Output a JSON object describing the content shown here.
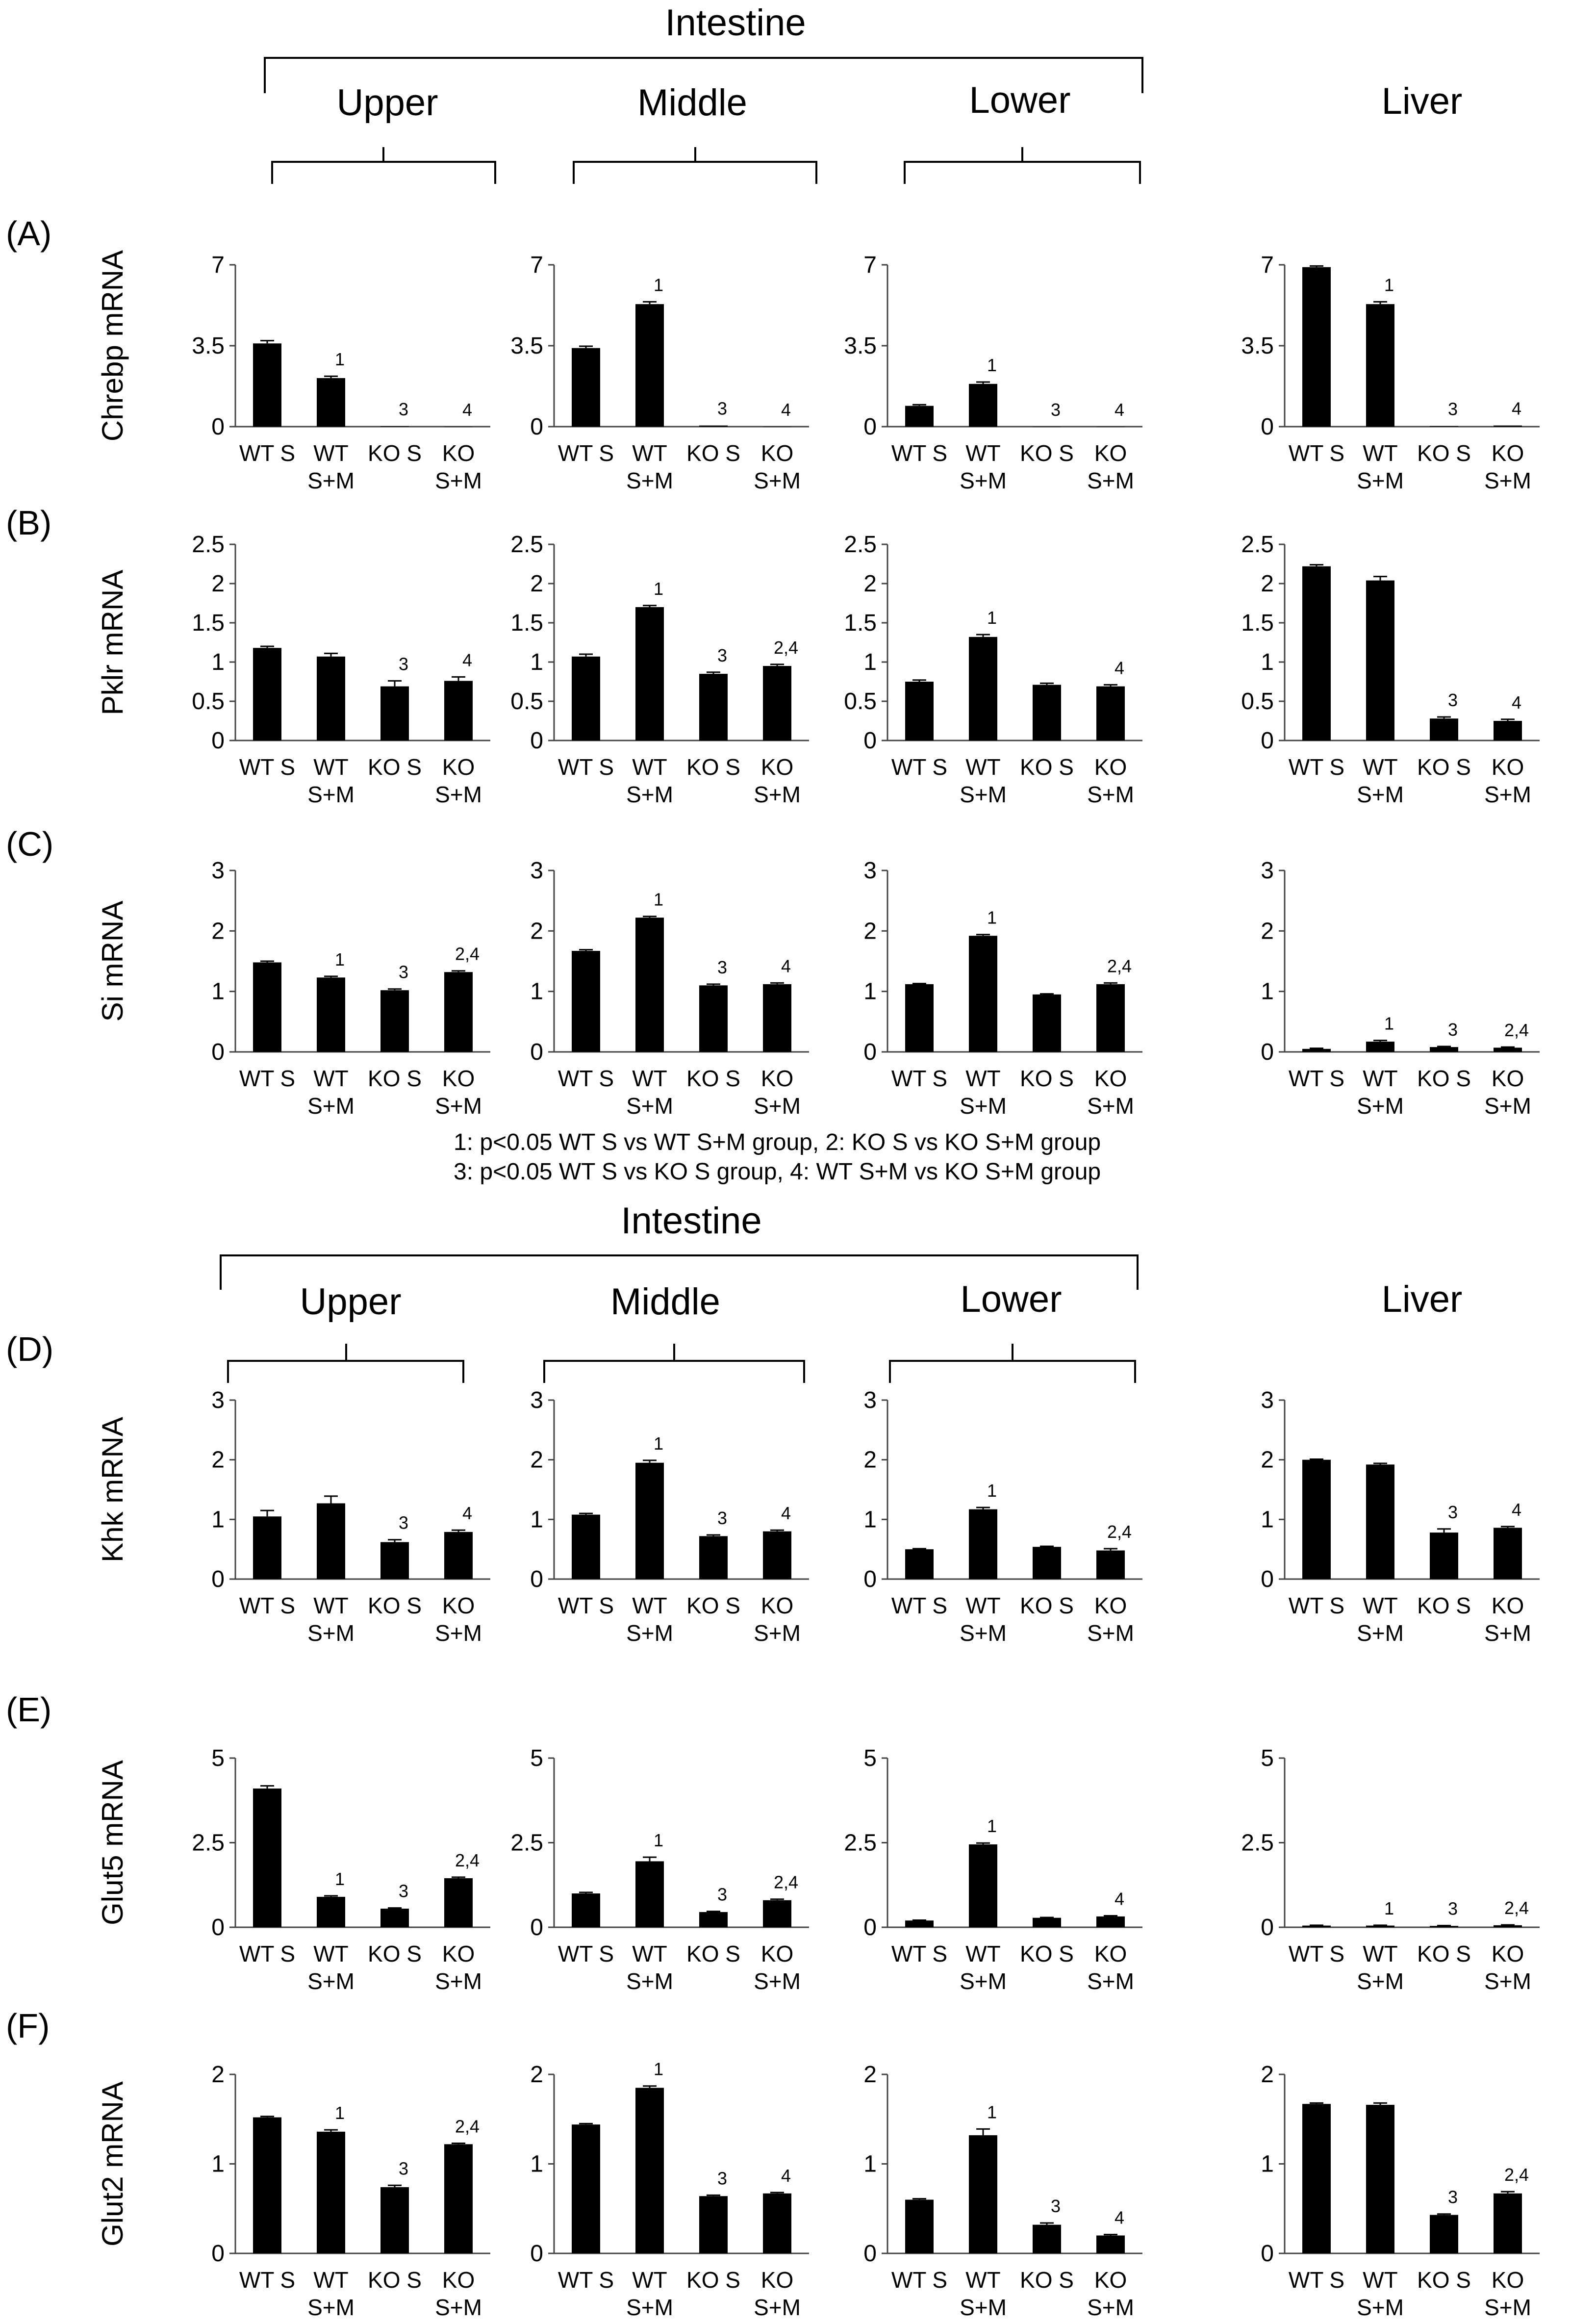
{
  "headers": {
    "intestine": "Intestine",
    "upper": "Upper",
    "middle": "Middle",
    "lower": "Lower",
    "liver": "Liver"
  },
  "footnote": {
    "line1": "1: p<0.05   WT S vs WT S+M  group,  2: KO S vs KO S+M  group",
    "line2": "3: p<0.05   WT S vs KO S   group,  4: WT S+M vs KO S+M  group"
  },
  "chart_data": [
    {
      "type": "bar",
      "panel": "A",
      "row_label": "(A)",
      "ylabel": "Chrebp mRNA",
      "region": "Upper",
      "ylim": [
        0,
        7
      ],
      "yticks": [
        "0",
        "3.5",
        "7"
      ],
      "categories": [
        "WT S",
        "WT S+M",
        "KO S",
        "KO S+M"
      ],
      "values": [
        3.6,
        2.1,
        0.02,
        0.0
      ],
      "errors": [
        0.12,
        0.08,
        0,
        0
      ],
      "sig": [
        "",
        "1",
        "3",
        "4"
      ]
    },
    {
      "type": "bar",
      "panel": "A",
      "row_label": "",
      "ylabel": "",
      "region": "Middle",
      "ylim": [
        0,
        7
      ],
      "yticks": [
        "0",
        "3.5",
        "7"
      ],
      "categories": [
        "WT S",
        "WT S+M",
        "KO S",
        "KO S+M"
      ],
      "values": [
        3.4,
        5.3,
        0.05,
        0.0
      ],
      "errors": [
        0.08,
        0.1,
        0,
        0
      ],
      "sig": [
        "",
        "1",
        "3",
        "4"
      ]
    },
    {
      "type": "bar",
      "panel": "A",
      "row_label": "",
      "ylabel": "",
      "region": "Lower",
      "ylim": [
        0,
        7
      ],
      "yticks": [
        "0",
        "3.5",
        "7"
      ],
      "categories": [
        "WT S",
        "WT S+M",
        "KO S",
        "KO S+M"
      ],
      "values": [
        0.9,
        1.85,
        0.0,
        0.0
      ],
      "errors": [
        0.05,
        0.08,
        0,
        0
      ],
      "sig": [
        "",
        "1",
        "3",
        "4"
      ]
    },
    {
      "type": "bar",
      "panel": "A",
      "row_label": "",
      "ylabel": "",
      "region": "Liver",
      "ylim": [
        0,
        7
      ],
      "yticks": [
        "0",
        "3.5",
        "7"
      ],
      "categories": [
        "WT S",
        "WT S+M",
        "KO S",
        "KO S+M"
      ],
      "values": [
        6.9,
        5.3,
        0.03,
        0.05
      ],
      "errors": [
        0.05,
        0.1,
        0,
        0
      ],
      "sig": [
        "",
        "1",
        "3",
        "4"
      ]
    },
    {
      "type": "bar",
      "panel": "B",
      "row_label": "(B)",
      "ylabel": "Pklr mRNA",
      "region": "Upper",
      "ylim": [
        0,
        2.5
      ],
      "yticks": [
        "0",
        "0.5",
        "1",
        "1.5",
        "2",
        "2.5"
      ],
      "categories": [
        "WT S",
        "WT S+M",
        "KO S",
        "KO S+M"
      ],
      "values": [
        1.18,
        1.07,
        0.69,
        0.76
      ],
      "errors": [
        0.02,
        0.04,
        0.07,
        0.05
      ],
      "sig": [
        "",
        "",
        "3",
        "4"
      ]
    },
    {
      "type": "bar",
      "panel": "B",
      "row_label": "",
      "ylabel": "",
      "region": "Middle",
      "ylim": [
        0,
        2.5
      ],
      "yticks": [
        "0",
        "0.5",
        "1",
        "1.5",
        "2",
        "2.5"
      ],
      "categories": [
        "WT S",
        "WT S+M",
        "KO S",
        "KO S+M"
      ],
      "values": [
        1.07,
        1.7,
        0.85,
        0.95
      ],
      "errors": [
        0.03,
        0.02,
        0.02,
        0.02
      ],
      "sig": [
        "",
        "1",
        "3",
        "2,4"
      ]
    },
    {
      "type": "bar",
      "panel": "B",
      "row_label": "",
      "ylabel": "",
      "region": "Lower",
      "ylim": [
        0,
        2.5
      ],
      "yticks": [
        "0",
        "0.5",
        "1",
        "1.5",
        "2",
        "2.5"
      ],
      "categories": [
        "WT S",
        "WT S+M",
        "KO S",
        "KO S+M"
      ],
      "values": [
        0.75,
        1.32,
        0.71,
        0.69
      ],
      "errors": [
        0.02,
        0.03,
        0.02,
        0.02
      ],
      "sig": [
        "",
        "1",
        "",
        "4"
      ]
    },
    {
      "type": "bar",
      "panel": "B",
      "row_label": "",
      "ylabel": "",
      "region": "Liver",
      "ylim": [
        0,
        2.5
      ],
      "yticks": [
        "0",
        "0.5",
        "1",
        "1.5",
        "2",
        "2.5"
      ],
      "categories": [
        "WT S",
        "WT S+M",
        "KO S",
        "KO S+M"
      ],
      "values": [
        2.22,
        2.04,
        0.28,
        0.25
      ],
      "errors": [
        0.02,
        0.05,
        0.02,
        0.02
      ],
      "sig": [
        "",
        "",
        "3",
        "4"
      ]
    },
    {
      "type": "bar",
      "panel": "C",
      "row_label": "(C)",
      "ylabel": "Si mRNA",
      "region": "Upper",
      "ylim": [
        0,
        3
      ],
      "yticks": [
        "0",
        "1",
        "2",
        "3"
      ],
      "categories": [
        "WT S",
        "WT S+M",
        "KO S",
        "KO S+M"
      ],
      "values": [
        1.48,
        1.23,
        1.02,
        1.32
      ],
      "errors": [
        0.02,
        0.02,
        0.02,
        0.02
      ],
      "sig": [
        "",
        "1",
        "3",
        "2,4"
      ]
    },
    {
      "type": "bar",
      "panel": "C",
      "row_label": "",
      "ylabel": "",
      "region": "Middle",
      "ylim": [
        0,
        3
      ],
      "yticks": [
        "0",
        "1",
        "2",
        "3"
      ],
      "categories": [
        "WT S",
        "WT S+M",
        "KO S",
        "KO S+M"
      ],
      "values": [
        1.67,
        2.22,
        1.1,
        1.12
      ],
      "errors": [
        0.02,
        0.02,
        0.02,
        0.02
      ],
      "sig": [
        "",
        "1",
        "3",
        "4"
      ]
    },
    {
      "type": "bar",
      "panel": "C",
      "row_label": "",
      "ylabel": "",
      "region": "Lower",
      "ylim": [
        0,
        3
      ],
      "yticks": [
        "0",
        "1",
        "2",
        "3"
      ],
      "categories": [
        "WT S",
        "WT S+M",
        "KO S",
        "KO S+M"
      ],
      "values": [
        1.12,
        1.92,
        0.95,
        1.12
      ],
      "errors": [
        0.01,
        0.02,
        0.01,
        0.02
      ],
      "sig": [
        "",
        "1",
        "",
        "2,4"
      ]
    },
    {
      "type": "bar",
      "panel": "C",
      "row_label": "",
      "ylabel": "",
      "region": "Liver",
      "ylim": [
        0,
        3
      ],
      "yticks": [
        "0",
        "1",
        "2",
        "3"
      ],
      "categories": [
        "WT S",
        "WT S+M",
        "KO S",
        "KO S+M"
      ],
      "values": [
        0.05,
        0.17,
        0.08,
        0.07
      ],
      "errors": [
        0.01,
        0.02,
        0.01,
        0.01
      ],
      "sig": [
        "",
        "1",
        "3",
        "2,4"
      ]
    },
    {
      "type": "bar",
      "panel": "D",
      "row_label": "(D)",
      "ylabel": "Khk mRNA",
      "region": "Upper",
      "ylim": [
        0,
        3
      ],
      "yticks": [
        "0",
        "1",
        "2",
        "3"
      ],
      "categories": [
        "WT S",
        "WT S+M",
        "KO S",
        "KO S+M"
      ],
      "values": [
        1.05,
        1.27,
        0.62,
        0.79
      ],
      "errors": [
        0.1,
        0.12,
        0.04,
        0.03
      ],
      "sig": [
        "",
        "",
        "3",
        "4"
      ]
    },
    {
      "type": "bar",
      "panel": "D",
      "row_label": "",
      "ylabel": "",
      "region": "Middle",
      "ylim": [
        0,
        3
      ],
      "yticks": [
        "0",
        "1",
        "2",
        "3"
      ],
      "categories": [
        "WT S",
        "WT S+M",
        "KO S",
        "KO S+M"
      ],
      "values": [
        1.08,
        1.95,
        0.72,
        0.8
      ],
      "errors": [
        0.02,
        0.04,
        0.02,
        0.02
      ],
      "sig": [
        "",
        "1",
        "3",
        "4"
      ]
    },
    {
      "type": "bar",
      "panel": "D",
      "row_label": "",
      "ylabel": "",
      "region": "Lower",
      "ylim": [
        0,
        3
      ],
      "yticks": [
        "0",
        "1",
        "2",
        "3"
      ],
      "categories": [
        "WT S",
        "WT S+M",
        "KO S",
        "KO S+M"
      ],
      "values": [
        0.5,
        1.17,
        0.54,
        0.48
      ],
      "errors": [
        0.01,
        0.03,
        0.01,
        0.03
      ],
      "sig": [
        "",
        "1",
        "",
        "2,4"
      ]
    },
    {
      "type": "bar",
      "panel": "D",
      "row_label": "",
      "ylabel": "",
      "region": "Liver",
      "ylim": [
        0,
        3
      ],
      "yticks": [
        "0",
        "1",
        "2",
        "3"
      ],
      "categories": [
        "WT S",
        "WT S+M",
        "KO S",
        "KO S+M"
      ],
      "values": [
        2.0,
        1.92,
        0.78,
        0.86
      ],
      "errors": [
        0.01,
        0.02,
        0.06,
        0.02
      ],
      "sig": [
        "",
        "",
        "3",
        "4"
      ]
    },
    {
      "type": "bar",
      "panel": "E",
      "row_label": "(E)",
      "ylabel": "Glut5 mRNA",
      "region": "Upper",
      "ylim": [
        0,
        5
      ],
      "yticks": [
        "0",
        "2.5",
        "5"
      ],
      "categories": [
        "WT S",
        "WT S+M",
        "KO S",
        "KO S+M"
      ],
      "values": [
        4.1,
        0.9,
        0.55,
        1.45
      ],
      "errors": [
        0.08,
        0.03,
        0.02,
        0.03
      ],
      "sig": [
        "",
        "1",
        "3",
        "2,4"
      ]
    },
    {
      "type": "bar",
      "panel": "E",
      "row_label": "",
      "ylabel": "",
      "region": "Middle",
      "ylim": [
        0,
        5
      ],
      "yticks": [
        "0",
        "2.5",
        "5"
      ],
      "categories": [
        "WT S",
        "WT S+M",
        "KO S",
        "KO S+M"
      ],
      "values": [
        1.0,
        1.95,
        0.45,
        0.8
      ],
      "errors": [
        0.03,
        0.12,
        0.02,
        0.03
      ],
      "sig": [
        "",
        "1",
        "3",
        "2,4"
      ]
    },
    {
      "type": "bar",
      "panel": "E",
      "row_label": "",
      "ylabel": "",
      "region": "Lower",
      "ylim": [
        0,
        5
      ],
      "yticks": [
        "0",
        "2.5",
        "5"
      ],
      "categories": [
        "WT S",
        "WT S+M",
        "KO S",
        "KO S+M"
      ],
      "values": [
        0.2,
        2.45,
        0.28,
        0.32
      ],
      "errors": [
        0.01,
        0.04,
        0.01,
        0.02
      ],
      "sig": [
        "",
        "1",
        "",
        "4"
      ]
    },
    {
      "type": "bar",
      "panel": "E",
      "row_label": "",
      "ylabel": "",
      "region": "Liver",
      "ylim": [
        0,
        5
      ],
      "yticks": [
        "0",
        "2.5",
        "5"
      ],
      "categories": [
        "WT S",
        "WT S+M",
        "KO S",
        "KO S+M"
      ],
      "values": [
        0.05,
        0.05,
        0.04,
        0.06
      ],
      "errors": [
        0.01,
        0.01,
        0.01,
        0.01
      ],
      "sig": [
        "",
        "1",
        "3",
        "2,4"
      ]
    },
    {
      "type": "bar",
      "panel": "F",
      "row_label": "(F)",
      "ylabel": "Glut2 mRNA",
      "region": "Upper",
      "ylim": [
        0,
        2
      ],
      "yticks": [
        "0",
        "1",
        "2"
      ],
      "categories": [
        "WT S",
        "WT S+M",
        "KO S",
        "KO S+M"
      ],
      "values": [
        1.52,
        1.36,
        0.74,
        1.22
      ],
      "errors": [
        0.01,
        0.02,
        0.02,
        0.01
      ],
      "sig": [
        "",
        "1",
        "3",
        "2,4"
      ]
    },
    {
      "type": "bar",
      "panel": "F",
      "row_label": "",
      "ylabel": "",
      "region": "Middle",
      "ylim": [
        0,
        2
      ],
      "yticks": [
        "0",
        "1",
        "2"
      ],
      "categories": [
        "WT S",
        "WT S+M",
        "KO S",
        "KO S+M"
      ],
      "values": [
        1.44,
        1.85,
        0.64,
        0.67
      ],
      "errors": [
        0.01,
        0.02,
        0.01,
        0.01
      ],
      "sig": [
        "",
        "1",
        "3",
        "4"
      ]
    },
    {
      "type": "bar",
      "panel": "F",
      "row_label": "",
      "ylabel": "",
      "region": "Lower",
      "ylim": [
        0,
        2
      ],
      "yticks": [
        "0",
        "1",
        "2"
      ],
      "categories": [
        "WT S",
        "WT S+M",
        "KO S",
        "KO S+M"
      ],
      "values": [
        0.6,
        1.32,
        0.32,
        0.2
      ],
      "errors": [
        0.01,
        0.07,
        0.02,
        0.01
      ],
      "sig": [
        "",
        "1",
        "3",
        "4"
      ]
    },
    {
      "type": "bar",
      "panel": "F",
      "row_label": "",
      "ylabel": "",
      "region": "Liver",
      "ylim": [
        0,
        2
      ],
      "yticks": [
        "0",
        "1",
        "2"
      ],
      "categories": [
        "WT S",
        "WT S+M",
        "KO S",
        "KO S+M"
      ],
      "values": [
        1.67,
        1.66,
        0.43,
        0.67
      ],
      "errors": [
        0.01,
        0.02,
        0.01,
        0.02
      ],
      "sig": [
        "",
        "",
        "3",
        "2,4"
      ]
    }
  ]
}
